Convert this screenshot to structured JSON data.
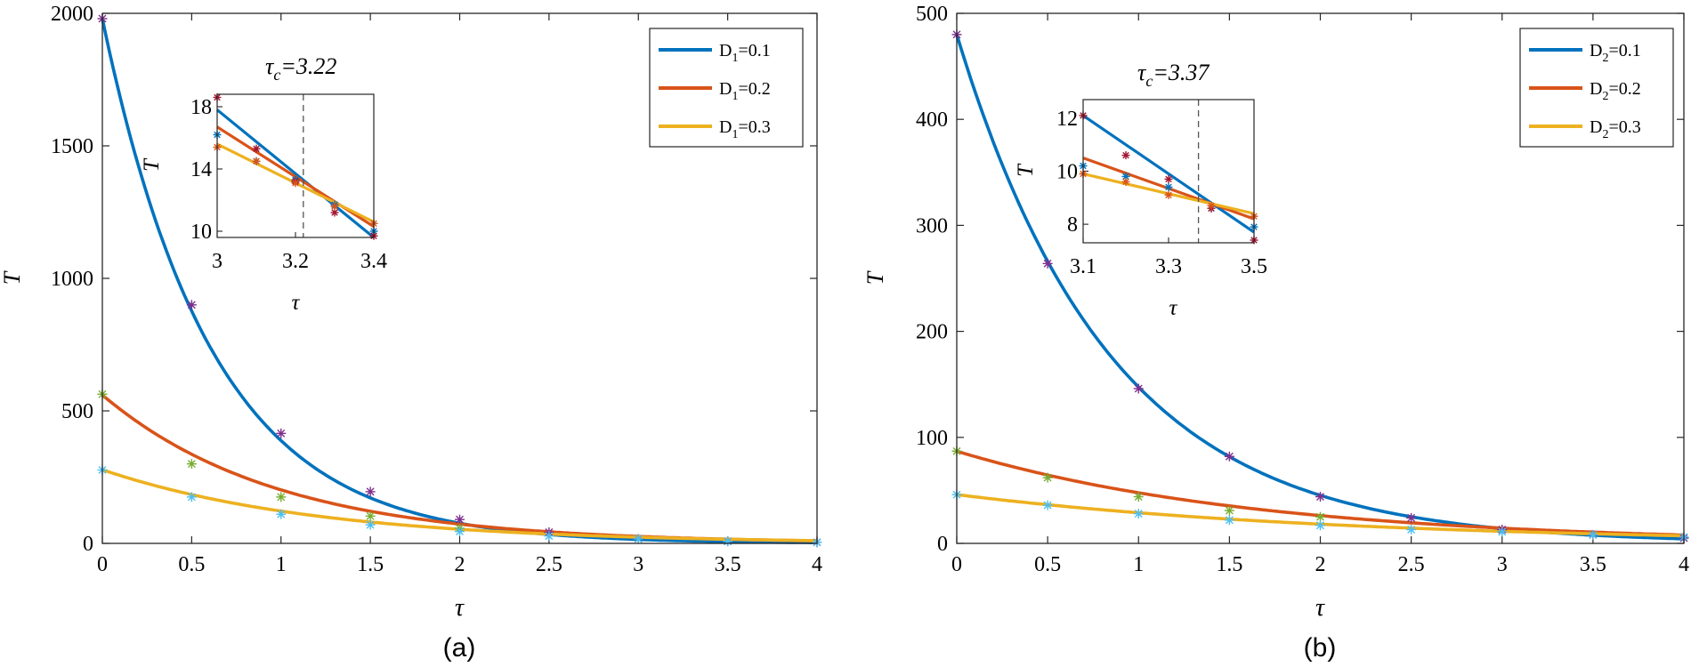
{
  "chart_data": [
    {
      "type": "line",
      "caption": "(a)",
      "xlabel": "τ",
      "ylabel": "T",
      "xlim": [
        0,
        4
      ],
      "ylim": [
        0,
        2000
      ],
      "xticks": [
        0,
        0.5,
        1,
        1.5,
        2,
        2.5,
        3,
        3.5,
        4
      ],
      "xtick_labels": [
        "0",
        "0.5",
        "1",
        "1.5",
        "2",
        "2.5",
        "3",
        "3.5",
        "4"
      ],
      "yticks": [
        0,
        500,
        1000,
        1500,
        2000
      ],
      "ytick_labels": [
        "0",
        "500",
        "1000",
        "1500",
        "2000"
      ],
      "legend": {
        "position": "top-right"
      },
      "series": [
        {
          "name": "D1=0.1",
          "legend_base": "D",
          "legend_sub": "1",
          "legend_value": "=0.1",
          "color": "#0072BD",
          "marker_color": "#7E2F8E",
          "y0": 1980,
          "decay": 1.63,
          "markers": {
            "x": [
              0,
              0.5,
              1,
              1.5,
              2,
              2.5,
              3,
              3.5,
              4
            ],
            "y": [
              1980,
              900,
              415,
              195,
              90,
              42,
              17,
              8,
              4
            ]
          }
        },
        {
          "name": "D1=0.2",
          "legend_base": "D",
          "legend_sub": "1",
          "legend_value": "=0.2",
          "color": "#D95319",
          "marker_color": "#77AC30",
          "y0": 560,
          "decay": 1.02,
          "markers": {
            "x": [
              0,
              0.5,
              1,
              1.5,
              2
            ],
            "y": [
              563,
              300,
              175,
              103,
              57
            ]
          }
        },
        {
          "name": "D1=0.3",
          "legend_base": "D",
          "legend_sub": "1",
          "legend_value": "=0.3",
          "color": "#EDB120",
          "marker_color": "#4DBEEE",
          "y0": 278,
          "decay": 0.825,
          "markers": {
            "x": [
              0,
              0.5,
              1,
              1.5,
              2,
              2.5,
              3,
              3.5,
              4
            ],
            "y": [
              277,
              175,
              110,
              70,
              45,
              28,
              17,
              8,
              4
            ]
          }
        }
      ],
      "inset": {
        "title_base": "τ",
        "title_sub": "c",
        "title_value": "=3.22",
        "xlabel": "τ",
        "ylabel": "T",
        "xlim": [
          3,
          3.4
        ],
        "ylim": [
          9.6,
          18.8
        ],
        "xticks": [
          3,
          3.2,
          3.4
        ],
        "xtick_labels": [
          "3",
          "3.2",
          "3.4"
        ],
        "yticks": [
          10,
          14,
          18
        ],
        "ytick_labels": [
          "10",
          "14",
          "18"
        ],
        "critical_x": 3.22,
        "series": [
          {
            "color": "#0072BD",
            "x": [
              3,
              3.4
            ],
            "y": [
              17.8,
              9.6
            ],
            "marker_x": [
              3,
              3.1,
              3.2,
              3.3,
              3.4
            ],
            "marker_y": [
              16.2,
              14.5,
              13.3,
              11.7,
              10.0
            ]
          },
          {
            "color": "#D95319",
            "x": [
              3,
              3.4
            ],
            "y": [
              16.7,
              10.3
            ],
            "marker_x": [
              3,
              3.1,
              3.2,
              3.3,
              3.4
            ],
            "marker_y": [
              18.6,
              15.3,
              13.2,
              11.2,
              9.7
            ]
          },
          {
            "color": "#EDB120",
            "x": [
              3,
              3.4
            ],
            "y": [
              15.6,
              10.6
            ],
            "marker_x": [
              3,
              3.1,
              3.2,
              3.3,
              3.4
            ],
            "marker_y": [
              15.4,
              14.5,
              13.1,
              11.6,
              10.5
            ]
          }
        ]
      }
    },
    {
      "type": "line",
      "caption": "(b)",
      "xlabel": "τ",
      "ylabel": "T",
      "xlim": [
        0,
        4
      ],
      "ylim": [
        0,
        500
      ],
      "xticks": [
        0,
        0.5,
        1,
        1.5,
        2,
        2.5,
        3,
        3.5,
        4
      ],
      "xtick_labels": [
        "0",
        "0.5",
        "1",
        "1.5",
        "2",
        "2.5",
        "3",
        "3.5",
        "4"
      ],
      "yticks": [
        0,
        100,
        200,
        300,
        400,
        500
      ],
      "ytick_labels": [
        "0",
        "100",
        "200",
        "300",
        "400",
        "500"
      ],
      "legend": {
        "position": "top-right"
      },
      "series": [
        {
          "name": "D2=0.1",
          "legend_base": "D",
          "legend_sub": "2",
          "legend_value": "=0.1",
          "color": "#0072BD",
          "marker_color": "#7E2F8E",
          "y0": 480,
          "decay": 1.18,
          "markers": {
            "x": [
              0,
              0.5,
              1,
              1.5,
              2,
              2.5,
              3,
              3.5,
              4
            ],
            "y": [
              480,
              264,
              146,
              82,
              44,
              24,
              13,
              8,
              5
            ]
          }
        },
        {
          "name": "D2=0.2",
          "legend_base": "D",
          "legend_sub": "2",
          "legend_value": "=0.2",
          "color": "#D95319",
          "marker_color": "#77AC30",
          "y0": 87,
          "decay": 0.6,
          "markers": {
            "x": [
              0,
              0.5,
              1,
              1.5,
              2
            ],
            "y": [
              87,
              62,
              44,
              31,
              25
            ]
          }
        },
        {
          "name": "D2=0.3",
          "legend_base": "D",
          "legend_sub": "2",
          "legend_value": "=0.3",
          "color": "#EDB120",
          "marker_color": "#4DBEEE",
          "y0": 46,
          "decay": 0.465,
          "markers": {
            "x": [
              0,
              0.5,
              1,
              1.5,
              2,
              2.5,
              3,
              3.5,
              4
            ],
            "y": [
              46,
              36,
              28,
              22,
              17,
              13,
              11,
              8,
              6
            ]
          }
        }
      ],
      "inset": {
        "title_base": "τ",
        "title_sub": "c",
        "title_value": "=3.37",
        "xlabel": "τ",
        "ylabel": "T",
        "xlim": [
          3.1,
          3.5
        ],
        "ylim": [
          7.3,
          12.7
        ],
        "xticks": [
          3.1,
          3.3,
          3.5
        ],
        "xtick_labels": [
          "3.1",
          "3.3",
          "3.5"
        ],
        "yticks": [
          8,
          10,
          12
        ],
        "ytick_labels": [
          "8",
          "10",
          "12"
        ],
        "critical_x": 3.37,
        "series": [
          {
            "color": "#0072BD",
            "x": [
              3.1,
              3.5
            ],
            "y": [
              12.1,
              7.7
            ],
            "marker_x": [
              3.1,
              3.2,
              3.3,
              3.4,
              3.5
            ],
            "marker_y": [
              10.2,
              9.8,
              9.4,
              8.6,
              7.9
            ]
          },
          {
            "color": "#D95319",
            "x": [
              3.1,
              3.5
            ],
            "y": [
              10.5,
              8.2
            ],
            "marker_x": [
              3.1,
              3.2,
              3.3,
              3.4,
              3.5
            ],
            "marker_y": [
              12.1,
              10.6,
              9.7,
              8.6,
              7.4
            ]
          },
          {
            "color": "#EDB120",
            "x": [
              3.1,
              3.5
            ],
            "y": [
              9.9,
              8.4
            ],
            "marker_x": [
              3.1,
              3.2,
              3.3,
              3.4,
              3.5
            ],
            "marker_y": [
              9.9,
              9.6,
              9.1,
              8.7,
              8.3
            ]
          }
        ]
      }
    }
  ]
}
